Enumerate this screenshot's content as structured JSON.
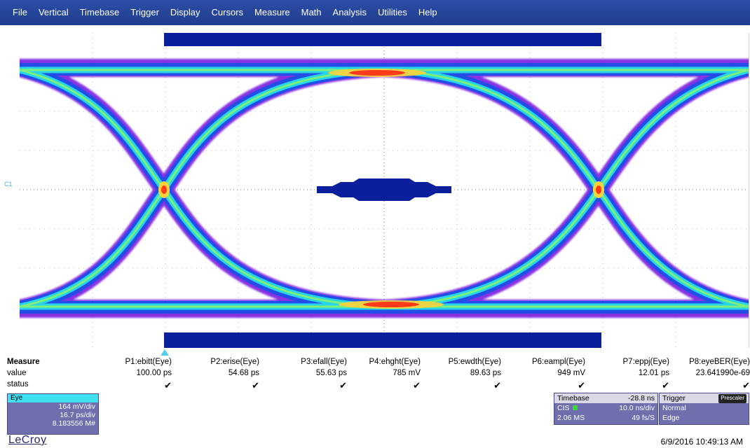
{
  "menu": [
    "File",
    "Vertical",
    "Timebase",
    "Trigger",
    "Display",
    "Cursors",
    "Measure",
    "Math",
    "Analysis",
    "Utilities",
    "Help"
  ],
  "screen": {
    "channel_marker": "C1"
  },
  "measure": {
    "header_label": "Measure",
    "value_label": "value",
    "status_label": "status",
    "params": [
      {
        "name": "P1:ebitt(Eye)",
        "value": "100.00 ps",
        "status": "✔"
      },
      {
        "name": "P2:erise(Eye)",
        "value": "54.68 ps",
        "status": "✔"
      },
      {
        "name": "P3:efall(Eye)",
        "value": "55.63 ps",
        "status": "✔"
      },
      {
        "name": "P4:ehght(Eye)",
        "value": "785 mV",
        "status": "✔"
      },
      {
        "name": "P5:ewdth(Eye)",
        "value": "89.63 ps",
        "status": "✔"
      },
      {
        "name": "P6:eampl(Eye)",
        "value": "949 mV",
        "status": "✔"
      },
      {
        "name": "P7:eppj(Eye)",
        "value": "12.01 ps",
        "status": "✔"
      },
      {
        "name": "P8:eyeBER(Eye)",
        "value": "23.641990e-69",
        "status": "✔"
      }
    ]
  },
  "eye_panel": {
    "title": "Eye",
    "vdiv": "164 mV/div",
    "tdiv": "16.7 ps/div",
    "count": "8.183556 M#"
  },
  "timebase": {
    "title": "Timebase",
    "delay": "-28.8 ns",
    "mode": "CIS",
    "tdiv": "10.0 ns/div",
    "samples": "2.06 MS",
    "rate": "49 fs/S"
  },
  "trigger": {
    "title": "Trigger",
    "badge": "Prescaler",
    "mode": "Normal",
    "type": "Edge"
  },
  "footer": {
    "brand": "LeCroy",
    "datetime": "6/9/2016 10:49:13 AM"
  },
  "colors": {
    "menubar": "#1f3d8e",
    "mask": "#0b1e9c",
    "panel": "#6f6fae"
  }
}
